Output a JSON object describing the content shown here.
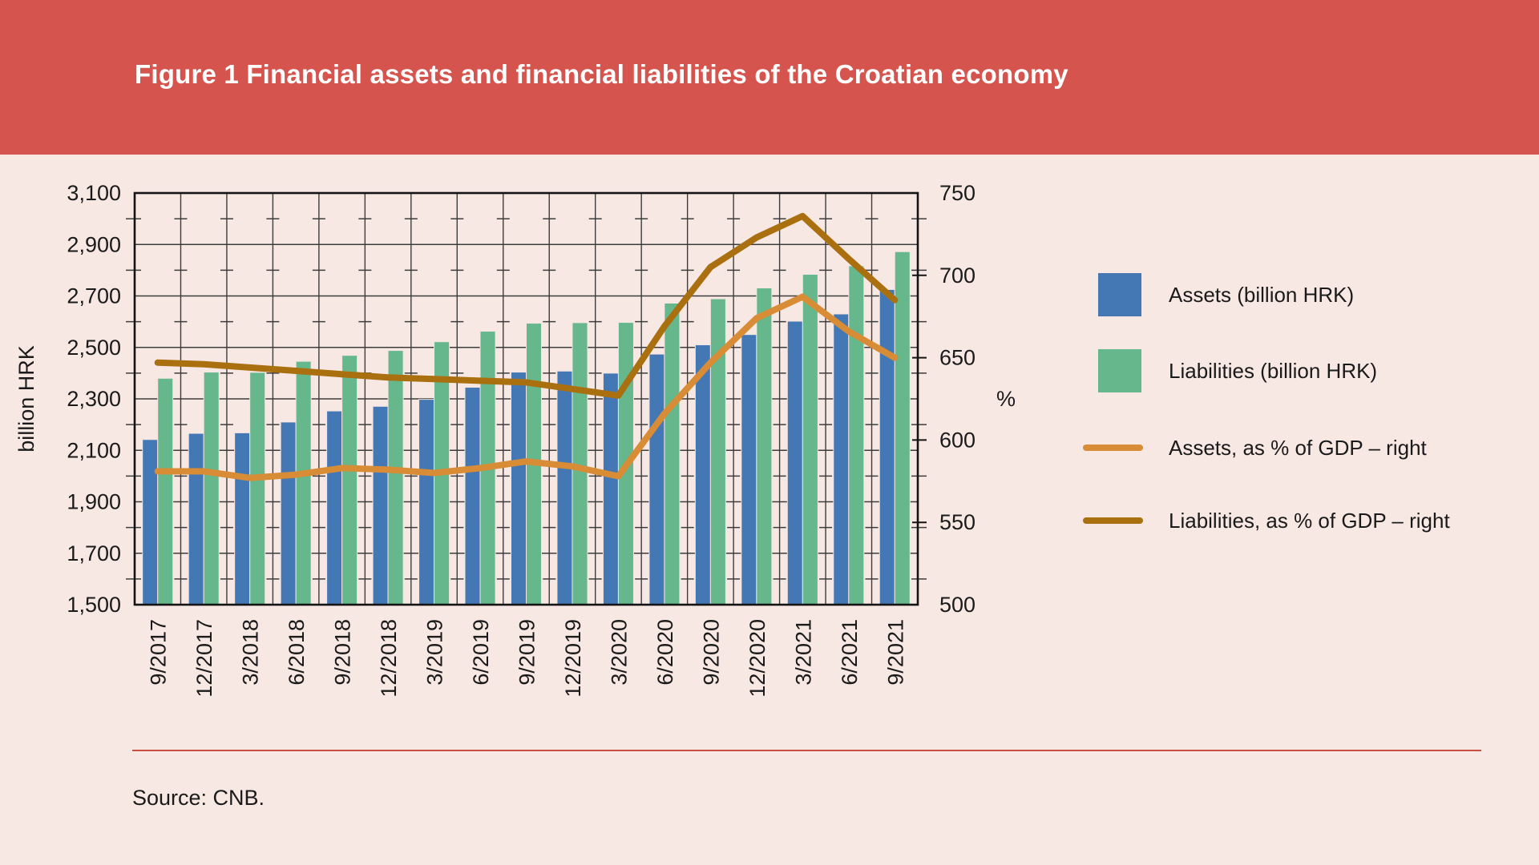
{
  "banner": {
    "title": "Figure 1 Financial assets and financial liabilities of the Croatian economy",
    "color": "#D5544D"
  },
  "source_note": "Source: CNB.",
  "colors": {
    "background": "#F8E8E4",
    "banner": "#D5544D",
    "assets_bar": "#4478B4",
    "liabilities_bar": "#66B78C",
    "assets_line": "#D88C35",
    "liabilities_line": "#AA7010",
    "grid": "#3C3C3C",
    "frame": "#141414",
    "rule": "#C94F41",
    "text": "#1a1a1a"
  },
  "chart_data": {
    "type": "bar",
    "title": "Figure 1 Financial assets and financial liabilities of the Croatian economy",
    "categories": [
      "9/2017",
      "12/2017",
      "3/2018",
      "6/2018",
      "9/2018",
      "12/2018",
      "3/2019",
      "6/2019",
      "9/2019",
      "12/2019",
      "3/2020",
      "6/2020",
      "9/2020",
      "12/2020",
      "3/2021",
      "6/2021",
      "9/2021"
    ],
    "series": [
      {
        "name": "Assets (billion HRK)",
        "kind": "bar",
        "axis": "left",
        "color": "#4478B4",
        "values": [
          2142,
          2166,
          2168,
          2210,
          2253,
          2271,
          2298,
          2345,
          2404,
          2408,
          2400,
          2474,
          2510,
          2550,
          2602,
          2630,
          2725
        ]
      },
      {
        "name": "Liabilities (billion HRK)",
        "kind": "bar",
        "axis": "left",
        "color": "#66B78C",
        "values": [
          2380,
          2404,
          2403,
          2446,
          2469,
          2488,
          2522,
          2563,
          2594,
          2596,
          2597,
          2672,
          2689,
          2731,
          2784,
          2817,
          2872
        ]
      },
      {
        "name": "Assets, as % of GDP – right",
        "kind": "line",
        "axis": "right",
        "color": "#D88C35",
        "values": [
          581,
          581,
          577,
          579,
          583,
          582,
          580,
          583,
          587,
          584,
          578,
          616,
          647,
          674,
          687,
          666,
          650
        ]
      },
      {
        "name": "Liabilities, as % of GDP – right",
        "kind": "line",
        "axis": "right",
        "color": "#AA7010",
        "values": [
          647,
          646,
          644,
          642,
          640,
          638,
          637,
          636,
          635,
          631,
          627,
          669,
          705,
          723,
          736,
          710,
          685
        ]
      }
    ],
    "left_axis": {
      "label": "billion HRK",
      "min": 1500,
      "max": 3100,
      "major_step": 200,
      "minor_step": 100,
      "tick_labels": [
        "3,100",
        "2,900",
        "2,700",
        "2,500",
        "2,300",
        "2,100",
        "1,900",
        "1,700",
        "1,500"
      ]
    },
    "right_axis": {
      "label": "%",
      "min": 500,
      "max": 750,
      "major_step": 50,
      "tick_labels": [
        "750",
        "700",
        "650",
        "600",
        "550",
        "500"
      ]
    },
    "grid": true,
    "legend_position": "right"
  }
}
